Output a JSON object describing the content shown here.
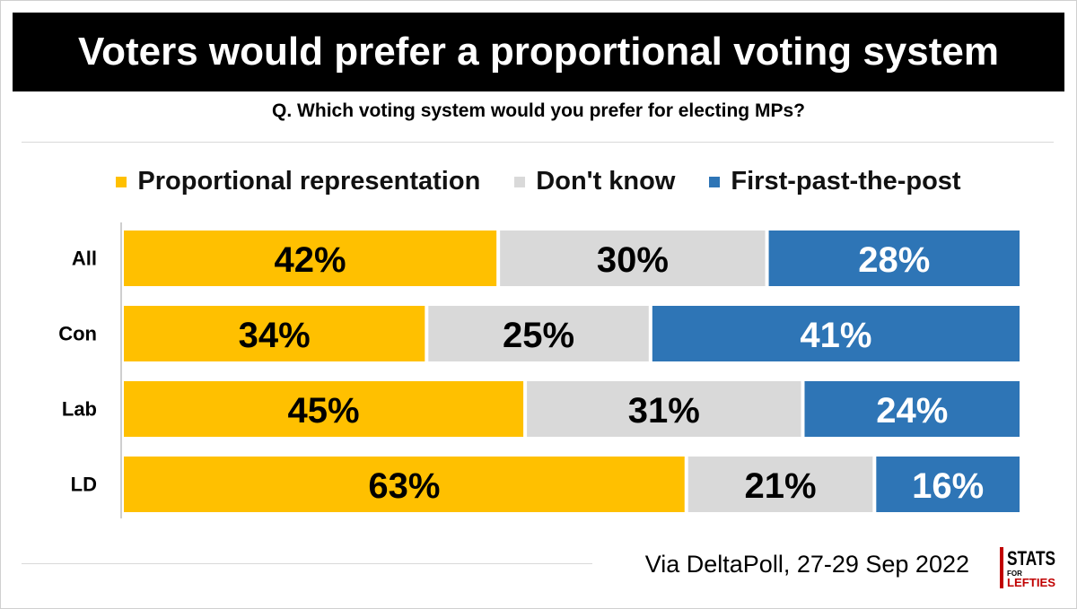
{
  "title": "Voters would prefer a proportional voting system",
  "subtitle": "Q. Which voting system would you prefer for electing MPs?",
  "source": "Via DeltaPoll, 27-29 Sep 2022",
  "logo": {
    "top": "STATS",
    "left": "FOR",
    "bottom": "LEFTIES"
  },
  "colors": {
    "proportional": "#ffc000",
    "dont_know": "#d9d9d9",
    "fptp": "#2e75b6",
    "title_bg": "#000000"
  },
  "chart_data": {
    "type": "bar",
    "orientation": "horizontal-stacked-100",
    "title": "Voters would prefer a proportional voting system",
    "subtitle": "Q. Which voting system would you prefer for electing MPs?",
    "categories": [
      "All",
      "Con",
      "Lab",
      "LD"
    ],
    "series": [
      {
        "name": "Proportional representation",
        "values": [
          42,
          34,
          45,
          63
        ],
        "color": "#ffc000",
        "label_color": "#000000"
      },
      {
        "name": "Don't know",
        "values": [
          30,
          25,
          31,
          21
        ],
        "color": "#d9d9d9",
        "label_color": "#000000"
      },
      {
        "name": "First-past-the-post",
        "values": [
          28,
          41,
          24,
          16
        ],
        "color": "#2e75b6",
        "label_color": "#ffffff"
      }
    ],
    "value_suffix": "%",
    "xlim": [
      0,
      100
    ],
    "legend_position": "top",
    "grid": false
  }
}
